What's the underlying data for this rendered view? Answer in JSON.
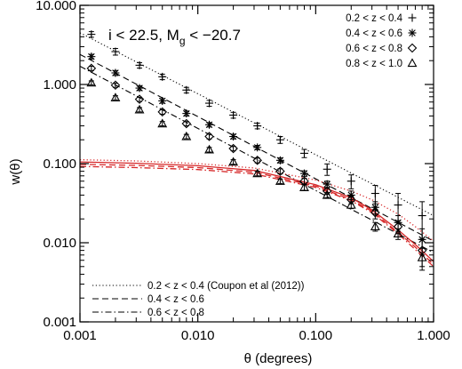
{
  "chart_data": {
    "type": "scatter",
    "title": "",
    "annotation": {
      "text_main": "i < 22.5, M",
      "text_sub": "g",
      "text_tail": " < −20.7"
    },
    "xlabel": "θ (degrees)",
    "ylabel": "w(θ)",
    "xscale": "log",
    "yscale": "log",
    "xlim": [
      0.001,
      1.0
    ],
    "ylim": [
      0.001,
      10.0
    ],
    "xticks": [
      {
        "value": 0.001,
        "label": "0.001"
      },
      {
        "value": 0.01,
        "label": "0.010"
      },
      {
        "value": 0.1,
        "label": "0.100"
      },
      {
        "value": 1.0,
        "label": "1.000"
      }
    ],
    "yticks": [
      {
        "value": 0.001,
        "label": "0.001"
      },
      {
        "value": 0.01,
        "label": "0.010"
      },
      {
        "value": 0.1,
        "label": "0.100"
      },
      {
        "value": 1.0,
        "label": "1.000"
      },
      {
        "value": 10.0,
        "label": "10.000"
      }
    ],
    "grid": false,
    "series": [
      {
        "name": "0.2 < z < 0.4",
        "marker": "plus",
        "x": [
          0.00125,
          0.002,
          0.0032,
          0.005,
          0.008,
          0.0125,
          0.02,
          0.032,
          0.05,
          0.08,
          0.125,
          0.2,
          0.32,
          0.5,
          0.8
        ],
        "y": [
          4.3,
          2.6,
          1.75,
          1.25,
          0.85,
          0.58,
          0.41,
          0.3,
          0.2,
          0.135,
          0.085,
          0.06,
          0.042,
          0.03,
          0.022
        ],
        "err": [
          0.35,
          0.25,
          0.14,
          0.1,
          0.07,
          0.05,
          0.035,
          0.025,
          0.02,
          0.016,
          0.014,
          0.012,
          0.011,
          0.012,
          0.011
        ]
      },
      {
        "name": "0.4 < z < 0.6",
        "marker": "asterisk",
        "x": [
          0.00125,
          0.002,
          0.0032,
          0.005,
          0.008,
          0.0125,
          0.02,
          0.032,
          0.05,
          0.08,
          0.125,
          0.2,
          0.32,
          0.5,
          0.8
        ],
        "y": [
          2.25,
          1.4,
          0.9,
          0.62,
          0.43,
          0.31,
          0.22,
          0.16,
          0.11,
          0.075,
          0.055,
          0.04,
          0.028,
          0.018,
          0.011
        ],
        "err": [
          0.15,
          0.1,
          0.06,
          0.04,
          0.03,
          0.02,
          0.015,
          0.01,
          0.008,
          0.006,
          0.005,
          0.005,
          0.005,
          0.004,
          0.004
        ]
      },
      {
        "name": "0.6 < z < 0.8",
        "marker": "diamond",
        "x": [
          0.00125,
          0.002,
          0.0032,
          0.005,
          0.008,
          0.0125,
          0.02,
          0.032,
          0.05,
          0.08,
          0.125,
          0.2,
          0.32,
          0.5,
          0.8
        ],
        "y": [
          1.6,
          0.98,
          0.65,
          0.45,
          0.32,
          0.22,
          0.155,
          0.11,
          0.08,
          0.06,
          0.045,
          0.035,
          0.024,
          0.016,
          0.008
        ],
        "err": [
          0.1,
          0.06,
          0.04,
          0.03,
          0.02,
          0.015,
          0.01,
          0.008,
          0.006,
          0.005,
          0.004,
          0.004,
          0.004,
          0.003,
          0.003
        ]
      },
      {
        "name": "0.8 < z < 1.0",
        "marker": "triangle",
        "x": [
          0.00125,
          0.002,
          0.0032,
          0.005,
          0.008,
          0.0125,
          0.02,
          0.032,
          0.05,
          0.08,
          0.125,
          0.2,
          0.32,
          0.5,
          0.8
        ],
        "y": [
          1.05,
          0.68,
          0.48,
          0.32,
          0.22,
          0.15,
          0.105,
          0.075,
          0.06,
          0.05,
          0.04,
          0.03,
          0.016,
          0.013,
          0.0065
        ],
        "err": [
          0.06,
          0.04,
          0.03,
          0.02,
          0.014,
          0.01,
          0.007,
          0.005,
          0.004,
          0.004,
          0.003,
          0.003,
          0.002,
          0.002,
          0.002
        ]
      }
    ],
    "fit_lines": [
      {
        "name": "0.2 < z < 0.4 (Coupon et al (2012))",
        "style": "dotted",
        "color": "#000000",
        "x": [
          0.001,
          1.0
        ],
        "y": [
          4.5,
          0.022
        ]
      },
      {
        "name": "0.4 < z < 0.6",
        "style": "dashed",
        "color": "#000000",
        "x": [
          0.001,
          1.0
        ],
        "y": [
          2.4,
          0.0105
        ]
      },
      {
        "name": "0.6 < z < 0.8",
        "style": "dashdot",
        "color": "#000000",
        "x": [
          0.001,
          1.0
        ],
        "y": [
          1.7,
          0.0075
        ]
      }
    ],
    "model_curves": [
      {
        "style": "dotted",
        "color": "#d62728",
        "x": [
          0.001,
          0.003,
          0.01,
          0.03,
          0.1,
          0.2,
          0.3,
          0.5,
          0.7,
          1.0
        ],
        "y": [
          0.112,
          0.108,
          0.1,
          0.088,
          0.062,
          0.045,
          0.035,
          0.023,
          0.016,
          0.0105
        ]
      },
      {
        "style": "solid",
        "color": "#d62728",
        "x": [
          0.001,
          0.003,
          0.01,
          0.03,
          0.1,
          0.2,
          0.3,
          0.5,
          0.7,
          1.0
        ],
        "y": [
          0.105,
          0.101,
          0.094,
          0.082,
          0.054,
          0.037,
          0.026,
          0.0145,
          0.0095,
          0.0058
        ]
      },
      {
        "style": "dashed",
        "color": "#d62728",
        "x": [
          0.001,
          0.003,
          0.01,
          0.03,
          0.1,
          0.2,
          0.3,
          0.5,
          0.7,
          1.0
        ],
        "y": [
          0.098,
          0.095,
          0.089,
          0.078,
          0.052,
          0.035,
          0.025,
          0.0135,
          0.0088,
          0.0053
        ]
      },
      {
        "style": "dashdot",
        "color": "#d62728",
        "x": [
          0.001,
          0.003,
          0.01,
          0.03,
          0.1,
          0.2,
          0.3,
          0.5,
          0.7,
          1.0
        ],
        "y": [
          0.092,
          0.089,
          0.084,
          0.074,
          0.05,
          0.034,
          0.024,
          0.013,
          0.0082,
          0.005
        ]
      }
    ],
    "legend_markers_position": "top-right",
    "legend_lines_position": "bottom-left",
    "colors": {
      "axes": "#000000",
      "data": "#000000",
      "model": "#d62728"
    }
  }
}
